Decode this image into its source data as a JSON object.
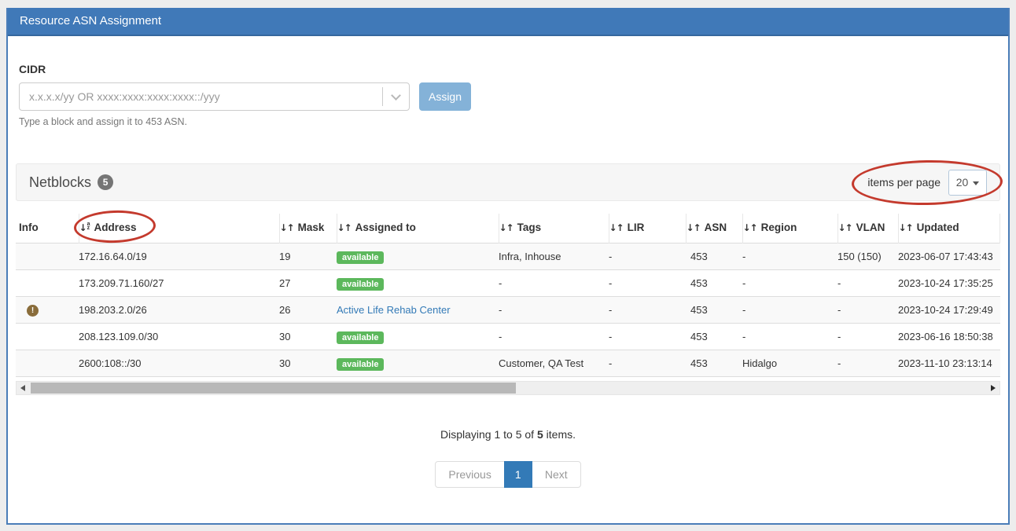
{
  "colors": {
    "header_blue": "#4079b8",
    "panel_border": "#4a7db8",
    "accent_blue": "#337ab7",
    "badge_green": "#5cb85c",
    "annotation_red": "#c43a2d",
    "assign_button_blue": "#84b2d8"
  },
  "panel": {
    "title": "Resource ASN Assignment"
  },
  "cidr_form": {
    "label": "CIDR",
    "input_placeholder": "x.x.x.x/yy OR xxxx:xxxx:xxxx:xxxx::/yyy",
    "input_value": "",
    "assign_button_label": "Assign",
    "help_text": "Type a block and assign it to 453 ASN."
  },
  "netblocks": {
    "title": "Netblocks",
    "count_badge": "5",
    "items_per_page_label": "items per page",
    "items_per_page_value": "20"
  },
  "table": {
    "columns": [
      {
        "label": "Info",
        "sort": "none"
      },
      {
        "label": "Address",
        "sort": "alpha-asc",
        "annotated": true
      },
      {
        "label": "Mask",
        "sort": "both"
      },
      {
        "label": "Assigned to",
        "sort": "both"
      },
      {
        "label": "Tags",
        "sort": "both"
      },
      {
        "label": "LIR",
        "sort": "both"
      },
      {
        "label": "ASN",
        "sort": "both"
      },
      {
        "label": "Region",
        "sort": "both"
      },
      {
        "label": "VLAN",
        "sort": "both"
      },
      {
        "label": "Updated",
        "sort": "both"
      }
    ],
    "rows": [
      {
        "info": "",
        "address": "172.16.64.0/19",
        "mask": "19",
        "assigned": {
          "type": "badge",
          "text": "available"
        },
        "tags": "Infra, Inhouse",
        "lir": "-",
        "asn": "453",
        "region": "-",
        "vlan": "150 (150)",
        "updated": "2023-06-07 17:43:43"
      },
      {
        "info": "",
        "address": "173.209.71.160/27",
        "mask": "27",
        "assigned": {
          "type": "badge",
          "text": "available"
        },
        "tags": "-",
        "lir": "-",
        "asn": "453",
        "region": "-",
        "vlan": "-",
        "updated": "2023-10-24 17:35:25"
      },
      {
        "info": "!",
        "address": "198.203.2.0/26",
        "mask": "26",
        "assigned": {
          "type": "link",
          "text": "Active Life Rehab Center"
        },
        "tags": "-",
        "lir": "-",
        "asn": "453",
        "region": "-",
        "vlan": "-",
        "updated": "2023-10-24 17:29:49"
      },
      {
        "info": "",
        "address": "208.123.109.0/30",
        "mask": "30",
        "assigned": {
          "type": "badge",
          "text": "available"
        },
        "tags": "-",
        "lir": "-",
        "asn": "453",
        "region": "-",
        "vlan": "-",
        "updated": "2023-06-16 18:50:38"
      },
      {
        "info": "",
        "address": "2600:108::/30",
        "mask": "30",
        "assigned": {
          "type": "badge",
          "text": "available"
        },
        "tags": "Customer, QA Test",
        "lir": "-",
        "asn": "453",
        "region": "Hidalgo",
        "vlan": "-",
        "updated": "2023-11-10 23:13:14"
      }
    ]
  },
  "footer": {
    "summary_prefix": "Displaying 1 to 5 of",
    "summary_count": "5",
    "summary_suffix": "items.",
    "pagination": [
      {
        "label": "Previous",
        "state": "muted"
      },
      {
        "label": "1",
        "state": "active"
      },
      {
        "label": "Next",
        "state": "muted"
      }
    ]
  }
}
